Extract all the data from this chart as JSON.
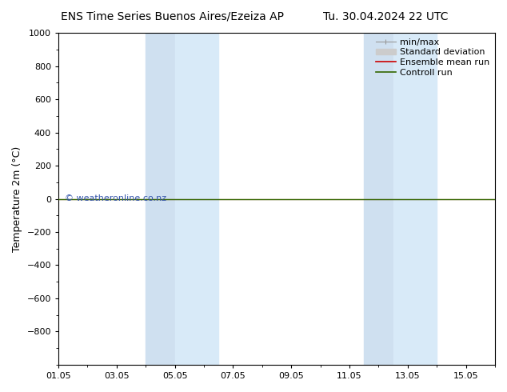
{
  "title_left": "ENS Time Series Buenos Aires/Ezeiza AP",
  "title_right": "Tu. 30.04.2024 22 UTC",
  "ylabel": "Temperature 2m (°C)",
  "ylim_top": -1000,
  "ylim_bottom": 1000,
  "yticks": [
    -800,
    -600,
    -400,
    -200,
    0,
    200,
    400,
    600,
    800,
    1000
  ],
  "xlim": [
    0,
    15
  ],
  "xtick_labels": [
    "01.05",
    "03.05",
    "05.05",
    "07.05",
    "09.05",
    "11.05",
    "13.05",
    "15.05"
  ],
  "xtick_positions": [
    0,
    2,
    4,
    6,
    8,
    10,
    12,
    14
  ],
  "shade_regions": [
    [
      3.0,
      4.0
    ],
    [
      4.0,
      5.5
    ],
    [
      10.5,
      11.5
    ],
    [
      11.5,
      13.0
    ]
  ],
  "shade_colors": [
    "#cfe0f0",
    "#d8eaf8",
    "#cfe0f0",
    "#d8eaf8"
  ],
  "control_run_y": 0,
  "control_run_color": "#336600",
  "ensemble_mean_color": "#cc0000",
  "minmax_color": "#999999",
  "stddev_color": "#cccccc",
  "copyright_text": "© weatheronline.co.nz",
  "copyright_color": "#3355aa",
  "background_color": "#ffffff",
  "legend_items": [
    "min/max",
    "Standard deviation",
    "Ensemble mean run",
    "Controll run"
  ],
  "legend_colors": [
    "#999999",
    "#cccccc",
    "#cc0000",
    "#336600"
  ],
  "font_size_title": 10,
  "font_size_axis": 9,
  "font_size_tick": 8,
  "font_size_legend": 8,
  "font_size_copyright": 8
}
